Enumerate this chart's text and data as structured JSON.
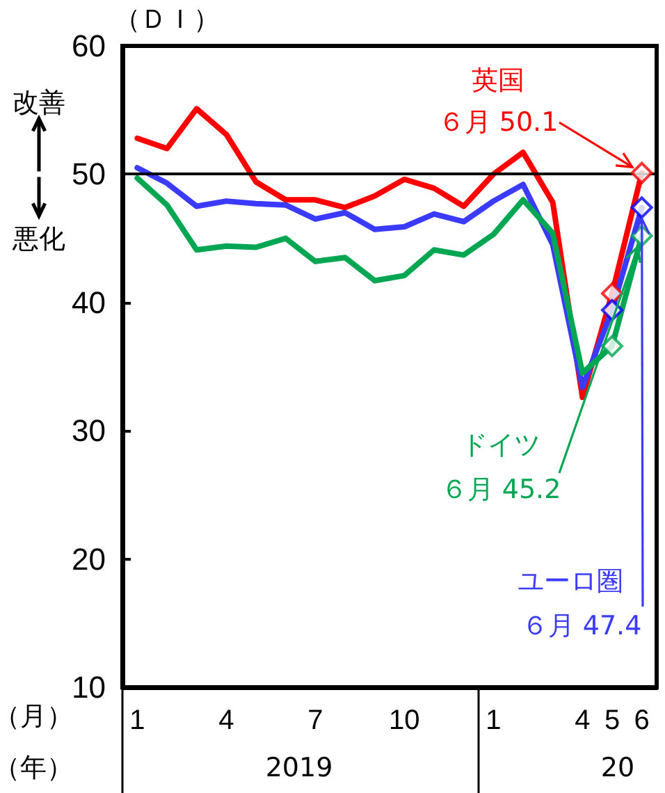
{
  "chart_data": {
    "type": "line",
    "xlabel": "（月）",
    "categories": [
      "1",
      null,
      null,
      "4",
      null,
      null,
      "7",
      null,
      null,
      "10",
      null,
      null,
      "1",
      null,
      null,
      "4",
      "5",
      "6"
    ],
    "series": [
      {
        "name": "英国",
        "color": "#ff0000",
        "values": [
          52.8,
          52.0,
          55.1,
          53.1,
          49.4,
          48.0,
          48.0,
          47.4,
          48.3,
          49.6,
          48.9,
          47.5,
          50.0,
          51.7,
          47.8,
          32.6,
          40.7,
          50.1
        ]
      },
      {
        "name": "ユーロ圏",
        "color": "#3b3bff",
        "values": [
          50.5,
          49.3,
          47.5,
          47.9,
          47.7,
          47.6,
          46.5,
          47.0,
          45.7,
          45.9,
          46.9,
          46.3,
          47.9,
          49.2,
          44.5,
          33.4,
          39.4,
          47.4
        ]
      },
      {
        "name": "ドイツ",
        "color": "#00a651",
        "values": [
          49.7,
          47.6,
          44.1,
          44.4,
          44.3,
          45.0,
          43.2,
          43.5,
          41.7,
          42.1,
          44.1,
          43.7,
          45.3,
          48.0,
          45.4,
          34.5,
          36.6,
          45.2
        ]
      },
      {
        "type": "scatter",
        "marker": "diamond",
        "color": "#ff0000",
        "values": [
          null,
          null,
          null,
          null,
          null,
          null,
          null,
          null,
          null,
          null,
          null,
          null,
          null,
          null,
          null,
          null,
          40.7,
          50.1
        ]
      },
      {
        "type": "scatter",
        "marker": "diamond",
        "color": "#0000ff",
        "values": [
          null,
          null,
          null,
          null,
          null,
          null,
          null,
          null,
          null,
          null,
          null,
          null,
          null,
          null,
          null,
          null,
          39.4,
          47.4
        ]
      },
      {
        "type": "scatter",
        "marker": "diamond",
        "color": "#00a651",
        "values": [
          null,
          null,
          null,
          null,
          null,
          null,
          null,
          null,
          null,
          null,
          null,
          null,
          null,
          null,
          null,
          null,
          36.6,
          45.2
        ]
      }
    ],
    "ylim": [
      10,
      60
    ],
    "yticks": [
      10,
      20,
      30,
      40,
      50,
      60
    ],
    "ref_lines": [
      {
        "axis": "y",
        "value": 50,
        "color": "#000000"
      }
    ],
    "annotations": [
      "（ＤＩ）",
      "改善",
      "悪化",
      "（年）",
      "2019",
      "20",
      {
        "text": "６月 50.1",
        "x": "6",
        "y": 50.1
      },
      {
        "text": "６月 47.4",
        "x": "6",
        "y": 47.4
      },
      {
        "text": "６月 45.2",
        "x": "6",
        "y": 45.2
      }
    ],
    "grid": false,
    "legend": false,
    "marker": "none",
    "line_style": "solid"
  }
}
